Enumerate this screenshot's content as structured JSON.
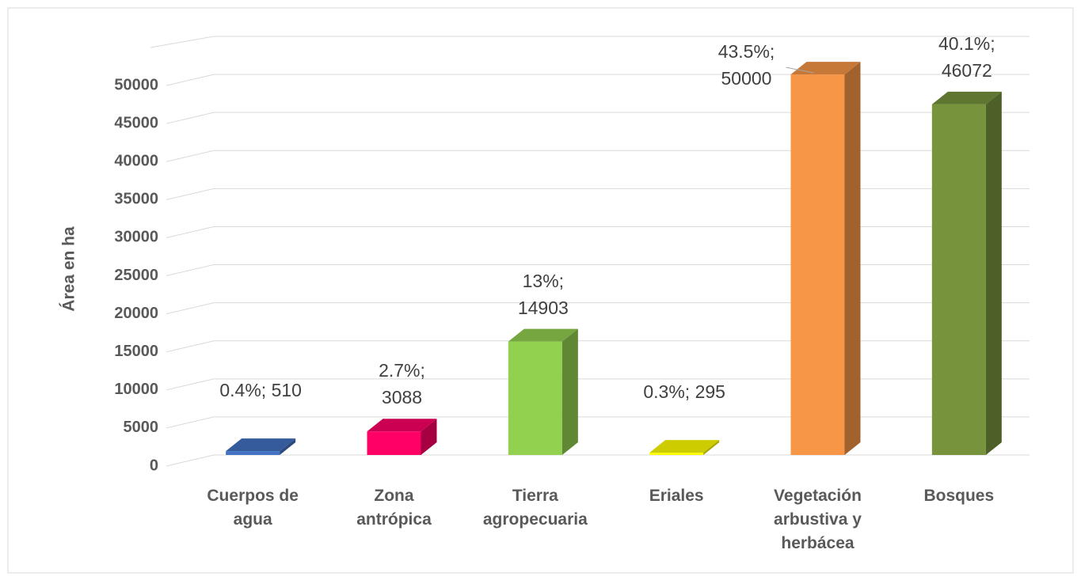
{
  "chart_data": {
    "type": "bar3d",
    "y_axis_label": "Área en ha",
    "categories": [
      "Cuerpos de agua",
      "Zona antrópica",
      "Tierra agropecuaria",
      "Eriales",
      "Vegetación arbustiva y herbácea",
      "Bosques"
    ],
    "values": [
      510,
      3088,
      14903,
      295,
      50000,
      46072
    ],
    "value_labels": [
      "0.4%; 510",
      "2.7%; 3088",
      "13%; 14903",
      "0.3%; 295",
      "43.5%; 50000",
      "40.1%; 46072"
    ],
    "colors": [
      "#4472c4",
      "#ff0066",
      "#92d050",
      "#ffff00",
      "#f79646",
      "#77933c"
    ],
    "ylim": [
      0,
      55000
    ],
    "yticks": [
      0,
      5000,
      10000,
      15000,
      20000,
      25000,
      30000,
      35000,
      40000,
      45000,
      50000
    ],
    "grid": true
  }
}
